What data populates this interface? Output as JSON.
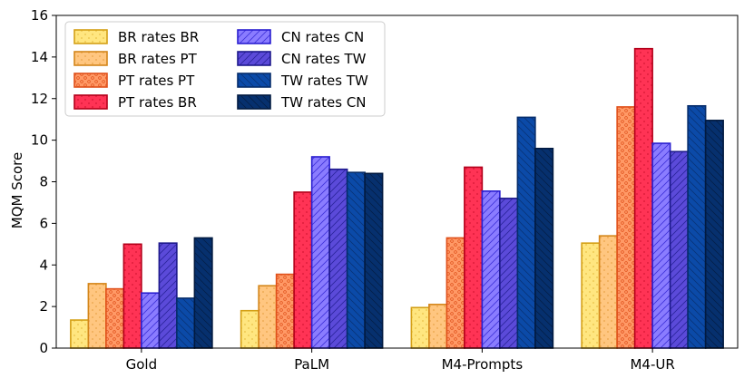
{
  "chart_data": {
    "type": "bar",
    "title": "",
    "xlabel": "",
    "ylabel": "MQM Score",
    "ylim": [
      0,
      16
    ],
    "yticks": [
      0,
      2,
      4,
      6,
      8,
      10,
      12,
      14,
      16
    ],
    "grid": false,
    "legend_position": "top-left",
    "categories": [
      "Gold",
      "PaLM",
      "M4-Prompts",
      "M4-UR"
    ],
    "series": [
      {
        "name": "BR rates BR",
        "values": [
          1.35,
          1.8,
          1.95,
          5.05
        ],
        "fill": "#ffe680",
        "stroke": "#d4a017",
        "pattern": "dots"
      },
      {
        "name": "BR rates PT",
        "values": [
          3.1,
          3.0,
          2.1,
          5.4
        ],
        "fill": "#ffc680",
        "stroke": "#d4861a",
        "pattern": "dots"
      },
      {
        "name": "PT rates PT",
        "values": [
          2.85,
          3.55,
          5.3,
          11.6
        ],
        "fill": "#ff9966",
        "stroke": "#e0501a",
        "pattern": "circles"
      },
      {
        "name": "PT rates BR",
        "values": [
          5.0,
          7.5,
          8.7,
          14.4
        ],
        "fill": "#ff3355",
        "stroke": "#b3001a",
        "pattern": "dots"
      },
      {
        "name": "CN rates CN",
        "values": [
          2.65,
          9.2,
          7.55,
          9.85
        ],
        "fill": "#8a7cff",
        "stroke": "#2a1fd0",
        "pattern": "diagonal"
      },
      {
        "name": "CN rates TW",
        "values": [
          5.05,
          8.6,
          7.2,
          9.45
        ],
        "fill": "#5b4ad9",
        "stroke": "#1e1a8c",
        "pattern": "diagonal"
      },
      {
        "name": "TW rates TW",
        "values": [
          2.4,
          8.45,
          11.1,
          11.65
        ],
        "fill": "#0b4aa8",
        "stroke": "#062d6b",
        "pattern": "backslash"
      },
      {
        "name": "TW rates CN",
        "values": [
          5.3,
          8.4,
          9.6,
          10.95
        ],
        "fill": "#06306e",
        "stroke": "#021a40",
        "pattern": "backslash"
      }
    ]
  }
}
